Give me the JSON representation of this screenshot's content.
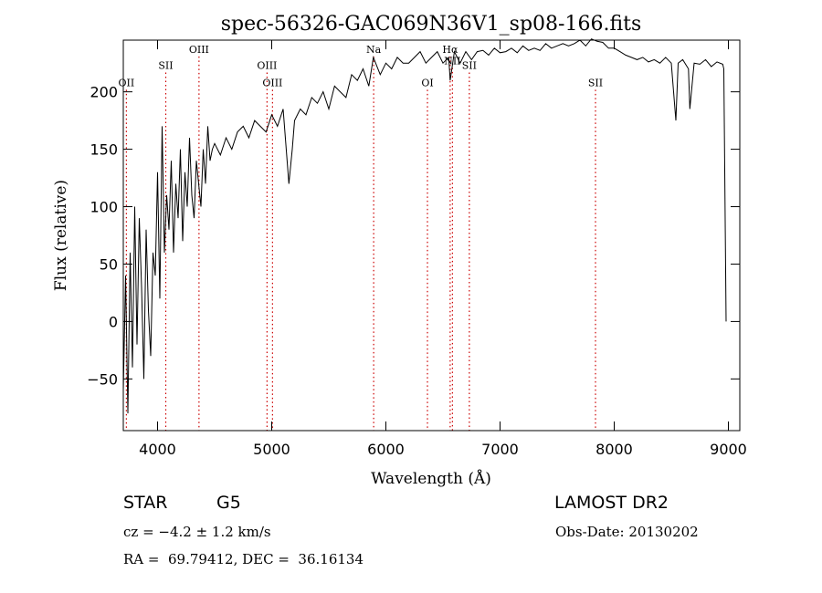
{
  "chart_data": {
    "type": "line",
    "title": "spec-56326-GAC069N36V1_sp08-166.fits",
    "xlabel": "Wavelength (Å)",
    "ylabel": "Flux (relative)",
    "xlim": [
      3700,
      9100
    ],
    "ylim": [
      -95,
      245
    ],
    "x_ticks": [
      4000,
      5000,
      6000,
      7000,
      8000,
      9000
    ],
    "y_ticks": [
      -50,
      0,
      50,
      100,
      150,
      200
    ],
    "line_color": "#000000",
    "marker_color": "#cc0000",
    "grid": false,
    "series": [
      {
        "x": [
          3700,
          3720,
          3740,
          3760,
          3780,
          3800,
          3820,
          3840,
          3860,
          3880,
          3900,
          3920,
          3940,
          3960,
          3980,
          4000,
          4020,
          4040,
          4060,
          4080,
          4100,
          4120,
          4140,
          4160,
          4180,
          4200,
          4220,
          4240,
          4260,
          4280,
          4300,
          4320,
          4340,
          4360,
          4380,
          4400,
          4420,
          4440,
          4460,
          4480,
          4500,
          4550,
          4600,
          4650,
          4700,
          4750,
          4800,
          4850,
          4900,
          4950,
          5000,
          5050,
          5100,
          5150,
          5180,
          5200,
          5250,
          5300,
          5350,
          5400,
          5450,
          5500,
          5550,
          5600,
          5650,
          5700,
          5750,
          5800,
          5850,
          5890,
          5950,
          6000,
          6050,
          6100,
          6150,
          6200,
          6250,
          6300,
          6350,
          6400,
          6450,
          6500,
          6550,
          6563,
          6600,
          6650,
          6700,
          6750,
          6800,
          6850,
          6900,
          6950,
          7000,
          7050,
          7100,
          7150,
          7200,
          7250,
          7300,
          7350,
          7400,
          7450,
          7500,
          7550,
          7600,
          7650,
          7700,
          7750,
          7800,
          7850,
          7900,
          7950,
          8000,
          8050,
          8100,
          8150,
          8200,
          8250,
          8300,
          8350,
          8400,
          8450,
          8500,
          8540,
          8560,
          8600,
          8650,
          8662,
          8700,
          8750,
          8800,
          8850,
          8900,
          8950,
          8960,
          8980
        ],
        "y": [
          -60,
          40,
          -80,
          60,
          -40,
          100,
          -20,
          90,
          30,
          -50,
          80,
          10,
          -30,
          60,
          40,
          130,
          20,
          170,
          60,
          110,
          80,
          140,
          60,
          120,
          90,
          150,
          70,
          130,
          100,
          160,
          110,
          90,
          140,
          120,
          100,
          150,
          120,
          170,
          140,
          150,
          155,
          145,
          160,
          150,
          165,
          170,
          160,
          175,
          170,
          165,
          180,
          170,
          185,
          120,
          150,
          175,
          185,
          180,
          195,
          190,
          200,
          185,
          205,
          200,
          195,
          215,
          210,
          220,
          205,
          230,
          215,
          225,
          220,
          230,
          225,
          225,
          230,
          235,
          225,
          230,
          235,
          225,
          230,
          210,
          235,
          225,
          235,
          228,
          235,
          236,
          232,
          238,
          234,
          235,
          238,
          234,
          240,
          236,
          238,
          236,
          242,
          238,
          240,
          242,
          240,
          242,
          245,
          240,
          246,
          244,
          243,
          238,
          238,
          235,
          232,
          230,
          228,
          230,
          226,
          228,
          225,
          230,
          225,
          175,
          225,
          228,
          220,
          185,
          225,
          224,
          228,
          222,
          226,
          224,
          220,
          0
        ]
      }
    ],
    "line_markers": [
      {
        "label": "OII",
        "x": 3727,
        "y_label": 205
      },
      {
        "label": "SII",
        "x": 4072,
        "y_label": 220
      },
      {
        "label": "OIII",
        "x": 4363,
        "y_label": 234
      },
      {
        "label": "OIII",
        "x": 4959,
        "y_label": 220
      },
      {
        "label": "OIII",
        "x": 5007,
        "y_label": 205
      },
      {
        "label": "Na",
        "x": 5893,
        "y_label": 234
      },
      {
        "label": "OI",
        "x": 6364,
        "y_label": 205
      },
      {
        "label": "Hα",
        "x": 6563,
        "y_label": 234
      },
      {
        "label": "NII",
        "x": 6583,
        "y_label": 224
      },
      {
        "label": "SII",
        "x": 6731,
        "y_label": 220
      },
      {
        "label": "SII",
        "x": 7836,
        "y_label": 205
      }
    ]
  },
  "info": {
    "object_class": "STAR",
    "subclass": "G5",
    "survey": "LAMOST DR2",
    "redshift_line": "cz = −4.2 ± 1.2 km/s",
    "obs_date": "Obs-Date: 20130202",
    "coords": "RA =  69.79412, DEC =  36.16134"
  }
}
